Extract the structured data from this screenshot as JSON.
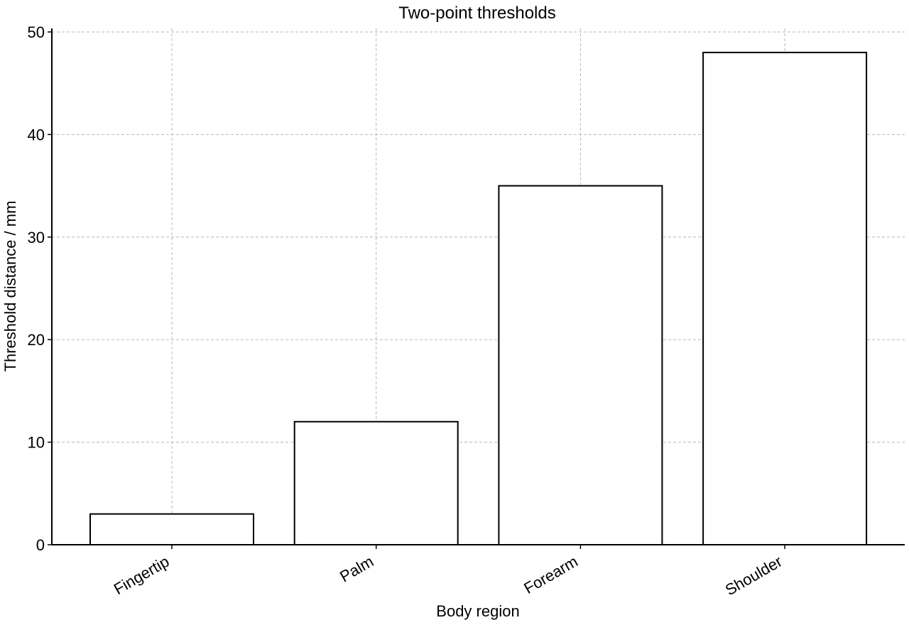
{
  "chart_data": {
    "type": "bar",
    "title": "Two-point thresholds",
    "xlabel": "Body region",
    "ylabel": "Threshold distance / mm",
    "categories": [
      "Fingertip",
      "Palm",
      "Forearm",
      "Shoulder"
    ],
    "values": [
      3,
      12,
      35,
      48
    ],
    "ylim": [
      0,
      50
    ],
    "yticks": [
      "0",
      "10",
      "20",
      "30",
      "40",
      "50"
    ],
    "grid": true,
    "bar_fill": "#ffffff",
    "bar_edge": "#000000"
  }
}
